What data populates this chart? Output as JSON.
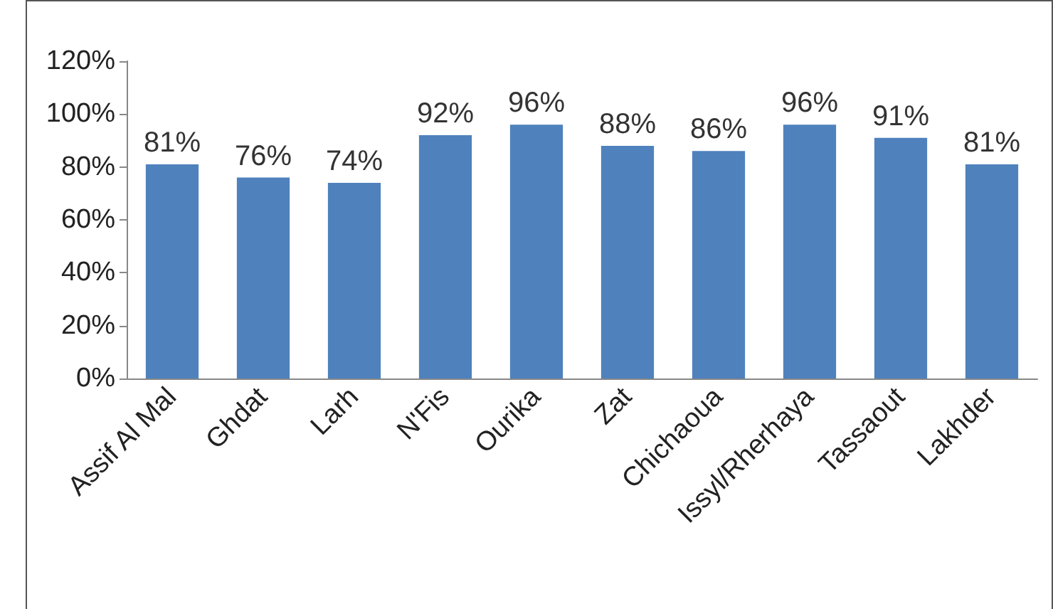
{
  "chart_data": {
    "type": "bar",
    "categories": [
      "Assif Al Mal",
      "Ghdat",
      "Larh",
      "N'Fis",
      "Ourika",
      "Zat",
      "Chichaoua",
      "Issyl/Rherhaya",
      "Tassaout",
      "Lakhder"
    ],
    "values": [
      81,
      76,
      74,
      92,
      96,
      88,
      86,
      96,
      91,
      81
    ],
    "value_labels": [
      "81%",
      "76%",
      "74%",
      "92%",
      "96%",
      "88%",
      "86%",
      "96%",
      "91%",
      "81%"
    ],
    "color": "#4f81bd",
    "ylim": [
      0,
      120
    ],
    "yticks": [
      {
        "value": 0,
        "label": "0%"
      },
      {
        "value": 20,
        "label": "20%"
      },
      {
        "value": 40,
        "label": "40%"
      },
      {
        "value": 60,
        "label": "60%"
      },
      {
        "value": 80,
        "label": "80%"
      },
      {
        "value": 100,
        "label": "100%"
      },
      {
        "value": 120,
        "label": "120%"
      }
    ],
    "line_style": "solid"
  }
}
